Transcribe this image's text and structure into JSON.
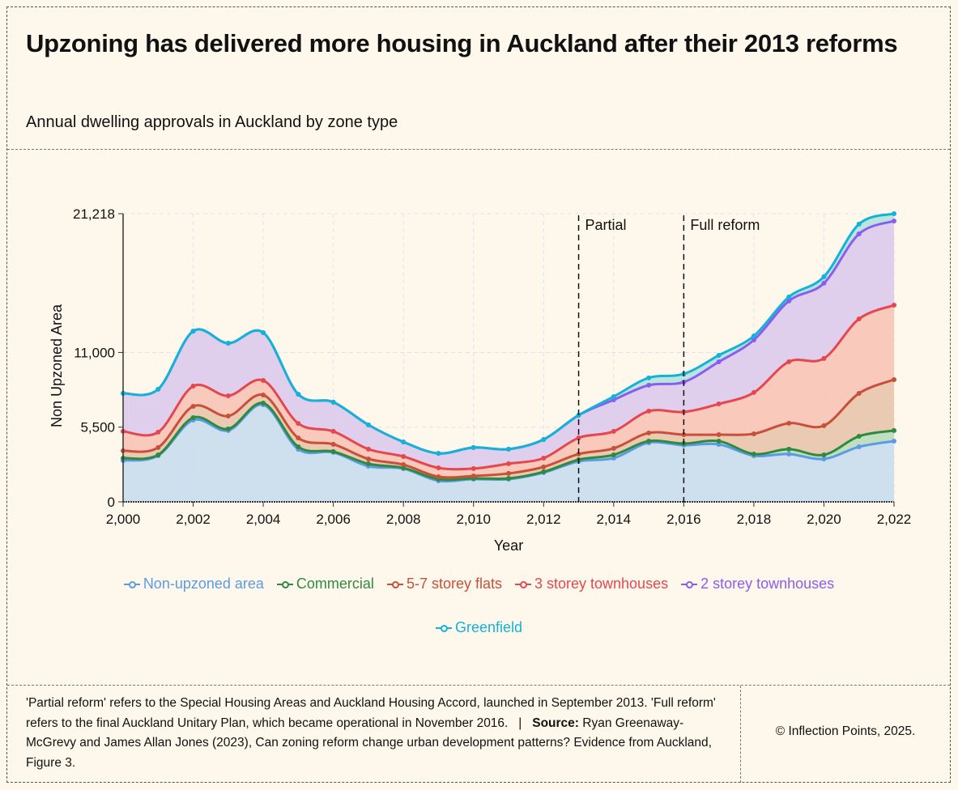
{
  "header": {
    "title": "Upzoning has delivered more housing in Auckland after their 2013 reforms",
    "subtitle": "Annual dwelling approvals in Auckland by zone type"
  },
  "footer": {
    "note": "'Partial reform' refers to the Special Housing Areas and Auckland Housing Accord, launched in September 2013. 'Full reform' refers to the final Auckland Unitary Plan, which became operational in November 2016.",
    "separator": "|",
    "source_label": "Source:",
    "source_text": "Ryan Greenaway-McGrevy and James Allan Jones (2023), Can zoning reform change urban development patterns? Evidence from Auckland, Figure 3.",
    "copyright": "© Inflection Points, 2025."
  },
  "chart_data": {
    "type": "area",
    "stacked": true,
    "title": "Annual dwelling approvals in Auckland by zone type",
    "xlabel": "Year",
    "ylabel": "Non Upzoned Area",
    "xlim": [
      2000,
      2022
    ],
    "ylim": [
      0,
      21218
    ],
    "x_ticks": [
      2000,
      2002,
      2004,
      2006,
      2008,
      2010,
      2012,
      2014,
      2016,
      2018,
      2020,
      2022
    ],
    "x_tick_labels": [
      "2,000",
      "2,002",
      "2,004",
      "2,006",
      "2,008",
      "2,010",
      "2,012",
      "2,014",
      "2,016",
      "2,018",
      "2,020",
      "2,022"
    ],
    "y_ticks": [
      0,
      5500,
      11000,
      21218
    ],
    "y_tick_labels": [
      "0",
      "5,500",
      "11,000",
      "21,218"
    ],
    "grid": true,
    "legend_position": "bottom",
    "x": [
      2000,
      2001,
      2002,
      2003,
      2004,
      2005,
      2006,
      2007,
      2008,
      2009,
      2010,
      2011,
      2012,
      2013,
      2014,
      2015,
      2016,
      2017,
      2018,
      2019,
      2020,
      2021,
      2022
    ],
    "series": [
      {
        "name": "Non-upzoned area",
        "color": "#5b9be6",
        "fill": "#c9dcee",
        "values": [
          3040,
          3400,
          6020,
          5250,
          7150,
          3870,
          3640,
          2620,
          2440,
          1550,
          1670,
          1670,
          2150,
          2980,
          3220,
          4350,
          4170,
          4230,
          3400,
          3520,
          3160,
          4050,
          4470
        ]
      },
      {
        "name": "Commercial",
        "color": "#2e8b3e",
        "fill": "#b9dcbc",
        "values": [
          180,
          60,
          180,
          120,
          120,
          180,
          60,
          180,
          60,
          120,
          60,
          60,
          60,
          120,
          240,
          120,
          120,
          240,
          120,
          360,
          300,
          780,
          780
        ]
      },
      {
        "name": "5-7 storey flats",
        "color": "#c8503a",
        "fill": "#e9c4ae",
        "values": [
          540,
          540,
          830,
          950,
          600,
          650,
          540,
          360,
          240,
          180,
          180,
          360,
          360,
          420,
          480,
          600,
          660,
          480,
          1490,
          1910,
          2150,
          3160,
          3750
        ]
      },
      {
        "name": "3 storey townhouses",
        "color": "#e4474f",
        "fill": "#f8c3b7",
        "values": [
          1430,
          1130,
          1490,
          1490,
          1070,
          1070,
          950,
          720,
          600,
          650,
          540,
          720,
          650,
          1190,
          1250,
          1610,
          1670,
          2260,
          3040,
          4530,
          4950,
          5480,
          5480
        ]
      },
      {
        "name": "2 storey townhouses",
        "color": "#8b5cf0",
        "fill": "#dccaec",
        "values": [
          2800,
          3160,
          4050,
          3870,
          3520,
          2150,
          2150,
          1790,
          1070,
          1070,
          1550,
          1070,
          1370,
          1670,
          2320,
          1910,
          2200,
          3100,
          3870,
          4470,
          5540,
          6260,
          6200
        ]
      },
      {
        "name": "Greenfield",
        "color": "#12b3d6",
        "fill": "#b3e2dc",
        "values": [
          0,
          0,
          0,
          0,
          0,
          0,
          0,
          0,
          0,
          0,
          0,
          0,
          0,
          0,
          240,
          540,
          600,
          480,
          300,
          300,
          480,
          720,
          540
        ]
      }
    ],
    "annotations": [
      {
        "x": 2013,
        "label": "Partial",
        "style": "dashed-vertical"
      },
      {
        "x": 2016,
        "label": "Full reform",
        "style": "dashed-vertical"
      }
    ]
  }
}
